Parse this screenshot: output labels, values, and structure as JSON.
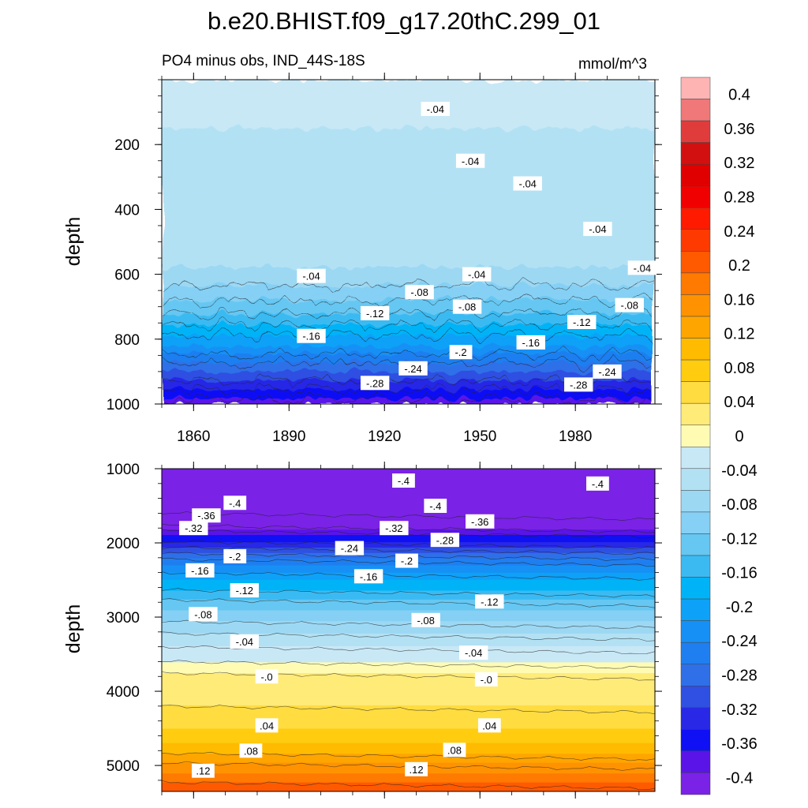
{
  "figure": {
    "title": "b.e20.BHIST.f09_g17.20thC.299_01"
  },
  "colors": {
    "palette": [
      "#7a22e6",
      "#5a14e8",
      "#1010f5",
      "#2828e6",
      "#2f50e2",
      "#2f6fe8",
      "#1f7ff0",
      "#1690f5",
      "#0ea1f8",
      "#00b3f7",
      "#3bbaf2",
      "#66c7f2",
      "#85d0f4",
      "#9dd8f3",
      "#b3e1f4",
      "#c8e8f6",
      "#fffbb3",
      "#ffeb78",
      "#ffdc40",
      "#ffcc10",
      "#ffbb00",
      "#ffa500",
      "#ff9200",
      "#ff7a00",
      "#ff5a00",
      "#ff3a00",
      "#ff1a00",
      "#f00000",
      "#e00000",
      "#d21010",
      "#e03c3c",
      "#f07878",
      "#ffb4b4"
    ]
  },
  "chart_data": [
    {
      "type": "heatmap",
      "subtitle_left": "PO4 minus obs, IND_44S-18S",
      "subtitle_right": "mmol/m^3",
      "ylabel": "depth",
      "xlim": [
        1850,
        2005
      ],
      "ylim": [
        0,
        1000
      ],
      "y_inverted": true,
      "yticks": [
        200,
        400,
        600,
        800,
        1000
      ],
      "ytick_labels": [
        "200",
        "400",
        "600",
        "800",
        "1000"
      ],
      "xticks": [
        1860,
        1890,
        1920,
        1950,
        1980
      ],
      "xtick_labels": [
        "1860",
        "1890",
        "1920",
        "1950",
        "1980"
      ],
      "contour_profile": {
        "depth": [
          0,
          50,
          150,
          300,
          450,
          520,
          580,
          620,
          660,
          700,
          740,
          780,
          820,
          860,
          900,
          940,
          970,
          1000
        ],
        "value": [
          -0.03,
          -0.035,
          -0.04,
          -0.045,
          -0.048,
          -0.052,
          -0.06,
          -0.075,
          -0.09,
          -0.11,
          -0.13,
          -0.155,
          -0.18,
          -0.21,
          -0.24,
          -0.27,
          -0.29,
          -0.31
        ]
      },
      "contour_labels": [
        {
          "text": "-.04",
          "year": 1936,
          "depth": 90
        },
        {
          "text": "-.04",
          "year": 1947,
          "depth": 250
        },
        {
          "text": "-.04",
          "year": 1965,
          "depth": 320
        },
        {
          "text": "-.04",
          "year": 1987,
          "depth": 460
        },
        {
          "text": "-.04",
          "year": 2001,
          "depth": 580
        },
        {
          "text": "-.04",
          "year": 1897,
          "depth": 605
        },
        {
          "text": "-.04",
          "year": 1949,
          "depth": 600
        },
        {
          "text": "-.08",
          "year": 1931,
          "depth": 655
        },
        {
          "text": "-.08",
          "year": 1946,
          "depth": 700
        },
        {
          "text": "-.08",
          "year": 1997,
          "depth": 695
        },
        {
          "text": "-.12",
          "year": 1917,
          "depth": 720
        },
        {
          "text": "-.12",
          "year": 1982,
          "depth": 747
        },
        {
          "text": "-.16",
          "year": 1897,
          "depth": 790
        },
        {
          "text": "-.16",
          "year": 1966,
          "depth": 810
        },
        {
          "text": "-.2",
          "year": 1944,
          "depth": 840
        },
        {
          "text": "-.24",
          "year": 1929,
          "depth": 890
        },
        {
          "text": "-.24",
          "year": 1990,
          "depth": 900
        },
        {
          "text": "-.28",
          "year": 1917,
          "depth": 935
        },
        {
          "text": "-.28",
          "year": 1981,
          "depth": 940
        }
      ]
    },
    {
      "type": "heatmap",
      "ylabel": "depth",
      "xlim": [
        1850,
        2005
      ],
      "ylim": [
        1000,
        5350
      ],
      "y_inverted": true,
      "yticks": [
        1000,
        2000,
        3000,
        4000,
        5000
      ],
      "ytick_labels": [
        "1000",
        "2000",
        "3000",
        "4000",
        "5000"
      ],
      "contour_profile": {
        "depth": [
          1000,
          1100,
          1300,
          1500,
          1700,
          1900,
          2100,
          2300,
          2500,
          2700,
          2900,
          3100,
          3300,
          3500,
          3700,
          3780,
          4000,
          4300,
          4500,
          4700,
          4900,
          5100,
          5350
        ],
        "value": [
          -0.38,
          -0.4,
          -0.42,
          -0.4,
          -0.36,
          -0.3,
          -0.25,
          -0.2,
          -0.16,
          -0.13,
          -0.1,
          -0.075,
          -0.05,
          -0.03,
          -0.01,
          0.005,
          0.01,
          0.025,
          0.04,
          0.06,
          0.09,
          0.12,
          0.16
        ]
      },
      "contour_labels": [
        {
          "text": "-.4",
          "year": 1926,
          "depth": 1160
        },
        {
          "text": "-.4",
          "year": 1987,
          "depth": 1200
        },
        {
          "text": "-.4",
          "year": 1873,
          "depth": 1460
        },
        {
          "text": "-.4",
          "year": 1936,
          "depth": 1500
        },
        {
          "text": "-.36",
          "year": 1864,
          "depth": 1630
        },
        {
          "text": "-.36",
          "year": 1950,
          "depth": 1710
        },
        {
          "text": "-.32",
          "year": 1860,
          "depth": 1800
        },
        {
          "text": "-.32",
          "year": 1923,
          "depth": 1800
        },
        {
          "text": "-.28",
          "year": 1939,
          "depth": 1960
        },
        {
          "text": "-.24",
          "year": 1909,
          "depth": 2070
        },
        {
          "text": "-.2",
          "year": 1873,
          "depth": 2180
        },
        {
          "text": "-.2",
          "year": 1927,
          "depth": 2240
        },
        {
          "text": "-.16",
          "year": 1862,
          "depth": 2370
        },
        {
          "text": "-.16",
          "year": 1915,
          "depth": 2450
        },
        {
          "text": "-.12",
          "year": 1876,
          "depth": 2640
        },
        {
          "text": "-.12",
          "year": 1953,
          "depth": 2790
        },
        {
          "text": "-.08",
          "year": 1863,
          "depth": 2960
        },
        {
          "text": "-.08",
          "year": 1933,
          "depth": 3040
        },
        {
          "text": "-.04",
          "year": 1876,
          "depth": 3330
        },
        {
          "text": "-.04",
          "year": 1948,
          "depth": 3480
        },
        {
          "text": "-.0",
          "year": 1883,
          "depth": 3800
        },
        {
          "text": "-.0",
          "year": 1952,
          "depth": 3840
        },
        {
          "text": ".04",
          "year": 1883,
          "depth": 4460
        },
        {
          "text": ".04",
          "year": 1953,
          "depth": 4460
        },
        {
          "text": ".08",
          "year": 1878,
          "depth": 4800
        },
        {
          "text": ".08",
          "year": 1942,
          "depth": 4790
        },
        {
          "text": ".12",
          "year": 1863,
          "depth": 5070
        },
        {
          "text": ".12",
          "year": 1930,
          "depth": 5050
        }
      ]
    },
    {
      "type": "colorbar",
      "levels": [
        -0.4,
        -0.38,
        -0.36,
        -0.34,
        -0.32,
        -0.3,
        -0.28,
        -0.26,
        -0.24,
        -0.22,
        -0.2,
        -0.18,
        -0.16,
        -0.14,
        -0.12,
        -0.1,
        -0.08,
        -0.06,
        -0.04,
        -0.02,
        0,
        0.02,
        0.04,
        0.06,
        0.08,
        0.1,
        0.12,
        0.14,
        0.16,
        0.18,
        0.2,
        0.22,
        0.24,
        0.26,
        0.28,
        0.3,
        0.32,
        0.34,
        0.36,
        0.38,
        0.4
      ],
      "tick_labels": [
        "0.4",
        "0.36",
        "0.32",
        "0.28",
        "0.24",
        "0.2",
        "0.16",
        "0.12",
        "0.08",
        "0.04",
        "0",
        "-0.04",
        "-0.08",
        "-0.12",
        "-0.16",
        "-0.2",
        "-0.24",
        "-0.28",
        "-0.32",
        "-0.36",
        "-0.4"
      ],
      "range": [
        -0.42,
        0.42
      ]
    }
  ]
}
